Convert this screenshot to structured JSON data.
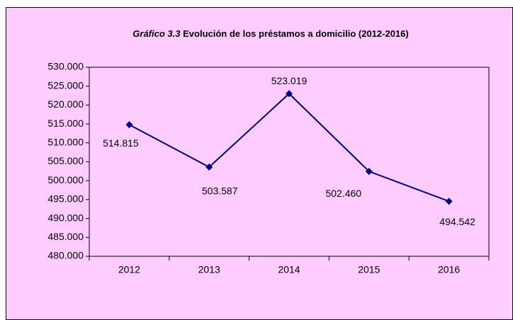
{
  "chart_data": {
    "type": "line",
    "title": [
      "Gráfico 3.3",
      "Evolución de los préstamos a domicilio  (2012-2016)"
    ],
    "categories": [
      "2012",
      "2013",
      "2014",
      "2015",
      "2016"
    ],
    "values": [
      514815,
      503587,
      523019,
      502460,
      494542
    ],
    "value_labels": [
      "514.815",
      "503.587",
      "523.019",
      "502.460",
      "494.542"
    ],
    "color": "#000080",
    "ylim": [
      480000,
      530000
    ],
    "yticks": [
      {
        "value": 480000,
        "label": "480.000"
      },
      {
        "value": 485000,
        "label": "485.000"
      },
      {
        "value": 490000,
        "label": "490.000"
      },
      {
        "value": 495000,
        "label": "495.000"
      },
      {
        "value": 500000,
        "label": "500.000"
      },
      {
        "value": 505000,
        "label": "505.000"
      },
      {
        "value": 510000,
        "label": "510.000"
      },
      {
        "value": 515000,
        "label": "515.000"
      },
      {
        "value": 520000,
        "label": "520.000"
      },
      {
        "value": 525000,
        "label": "525.000"
      },
      {
        "value": 530000,
        "label": "530.000"
      }
    ],
    "grid": false
  }
}
